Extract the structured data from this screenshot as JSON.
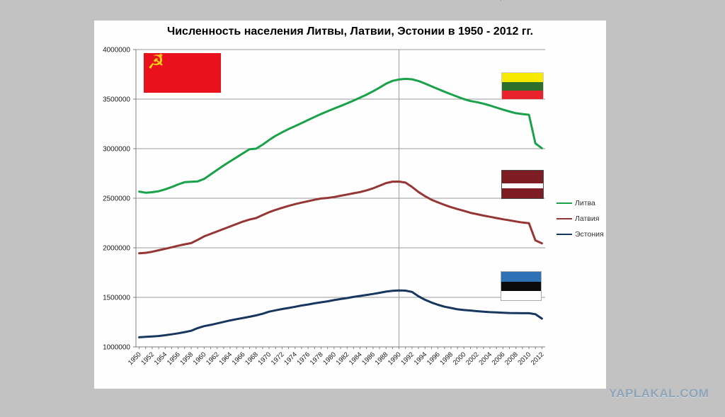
{
  "page": {
    "background_color": "#c2c2c2",
    "panel_color": "#fefefe"
  },
  "watermark": {
    "text": "YAPLAKAL.COM",
    "color": "#8ea5ba"
  },
  "icons": {
    "hammer_and_sickle": "☭",
    "star": "★",
    "artifact_glyph": "’"
  },
  "flags": {
    "ussr": {
      "name": "flag-ussr",
      "colors": [
        "#e8111c",
        "#fcd116"
      ]
    },
    "lithuania": {
      "name": "flag-lithuania",
      "colors": [
        "#f7e800",
        "#2d6e2d",
        "#e8232b"
      ]
    },
    "latvia": {
      "name": "flag-latvia",
      "colors": [
        "#7e1c24",
        "#ffffff"
      ]
    },
    "estonia": {
      "name": "flag-estonia",
      "colors": [
        "#2e72b5",
        "#0b0b0b",
        "#ffffff"
      ]
    }
  },
  "chart_data": {
    "type": "line",
    "title": "Численность населения Литвы, Латвии, Эстонии в 1950 - 2012 гг.",
    "xlabel": "",
    "ylabel": "",
    "ylim": [
      1000000,
      4000000
    ],
    "ytick_step": 500000,
    "ytick_labels": [
      "1000000",
      "1500000",
      "2000000",
      "2500000",
      "3000000",
      "3500000",
      "4000000"
    ],
    "xtick_every": 2,
    "xtick_labels": [
      "1950",
      "1952",
      "1954",
      "1956",
      "1958",
      "1960",
      "1962",
      "1964",
      "1966",
      "1968",
      "1970",
      "1972",
      "1974",
      "1976",
      "1978",
      "1980",
      "1982",
      "1984",
      "1986",
      "1988",
      "1990",
      "1992",
      "1994",
      "1996",
      "1998",
      "2000",
      "2002",
      "2004",
      "2006",
      "2008",
      "2010",
      "2012"
    ],
    "vline_year": 1990,
    "grid_on": true,
    "grid_color": "#9a9a9a",
    "axis_color": "#7f7f7f",
    "legend_position": "right",
    "years": [
      1950,
      1951,
      1952,
      1953,
      1954,
      1955,
      1956,
      1957,
      1958,
      1959,
      1960,
      1961,
      1962,
      1963,
      1964,
      1965,
      1966,
      1967,
      1968,
      1969,
      1970,
      1971,
      1972,
      1973,
      1974,
      1975,
      1976,
      1977,
      1978,
      1979,
      1980,
      1981,
      1982,
      1983,
      1984,
      1985,
      1986,
      1987,
      1988,
      1989,
      1990,
      1991,
      1992,
      1993,
      1994,
      1995,
      1996,
      1997,
      1998,
      1999,
      2000,
      2001,
      2002,
      2003,
      2004,
      2005,
      2006,
      2007,
      2008,
      2009,
      2010,
      2011,
      2012
    ],
    "series": [
      {
        "name": "Литва",
        "color": "#19a24a",
        "values": [
          2567000,
          2556000,
          2561000,
          2571000,
          2590000,
          2613000,
          2639000,
          2662000,
          2666000,
          2670000,
          2695000,
          2740000,
          2786000,
          2830000,
          2872000,
          2913000,
          2954000,
          2995000,
          3000000,
          3040000,
          3087000,
          3130000,
          3165000,
          3198000,
          3228000,
          3258000,
          3289000,
          3320000,
          3350000,
          3378000,
          3404000,
          3430000,
          3457000,
          3485000,
          3515000,
          3545000,
          3579000,
          3616000,
          3655000,
          3684000,
          3698000,
          3704000,
          3700000,
          3683000,
          3657000,
          3629000,
          3602000,
          3575000,
          3549000,
          3524000,
          3500000,
          3481000,
          3469000,
          3454000,
          3436000,
          3414000,
          3394000,
          3375000,
          3358000,
          3349000,
          3342000,
          3053000,
          3004000
        ]
      },
      {
        "name": "Латвия",
        "color": "#963634",
        "values": [
          1944000,
          1949000,
          1960000,
          1975000,
          1990000,
          2005000,
          2021000,
          2035000,
          2047000,
          2080000,
          2115000,
          2140000,
          2165000,
          2190000,
          2215000,
          2240000,
          2265000,
          2285000,
          2300000,
          2330000,
          2359000,
          2383000,
          2403000,
          2423000,
          2441000,
          2456000,
          2470000,
          2484000,
          2497000,
          2503000,
          2512000,
          2525000,
          2537000,
          2550000,
          2562000,
          2579000,
          2600000,
          2626000,
          2653000,
          2667000,
          2668000,
          2658000,
          2614000,
          2563000,
          2521000,
          2485000,
          2458000,
          2433000,
          2410000,
          2391000,
          2373000,
          2353000,
          2339000,
          2325000,
          2313000,
          2300000,
          2288000,
          2277000,
          2266000,
          2255000,
          2248000,
          2075000,
          2045000
        ]
      },
      {
        "name": "Эстония",
        "color": "#17375e",
        "values": [
          1097000,
          1102000,
          1106000,
          1110000,
          1118000,
          1127000,
          1137000,
          1149000,
          1163000,
          1190000,
          1209000,
          1222000,
          1237000,
          1252000,
          1267000,
          1280000,
          1292000,
          1304000,
          1318000,
          1334000,
          1356000,
          1369000,
          1382000,
          1393000,
          1405000,
          1418000,
          1428000,
          1440000,
          1450000,
          1460000,
          1472000,
          1483000,
          1493000,
          1504000,
          1514000,
          1524000,
          1534000,
          1546000,
          1558000,
          1566000,
          1569000,
          1568000,
          1555000,
          1511000,
          1476000,
          1448000,
          1425000,
          1406000,
          1393000,
          1379000,
          1372000,
          1367000,
          1361000,
          1356000,
          1351000,
          1348000,
          1345000,
          1342000,
          1341000,
          1340000,
          1340000,
          1330000,
          1286000
        ]
      }
    ]
  }
}
